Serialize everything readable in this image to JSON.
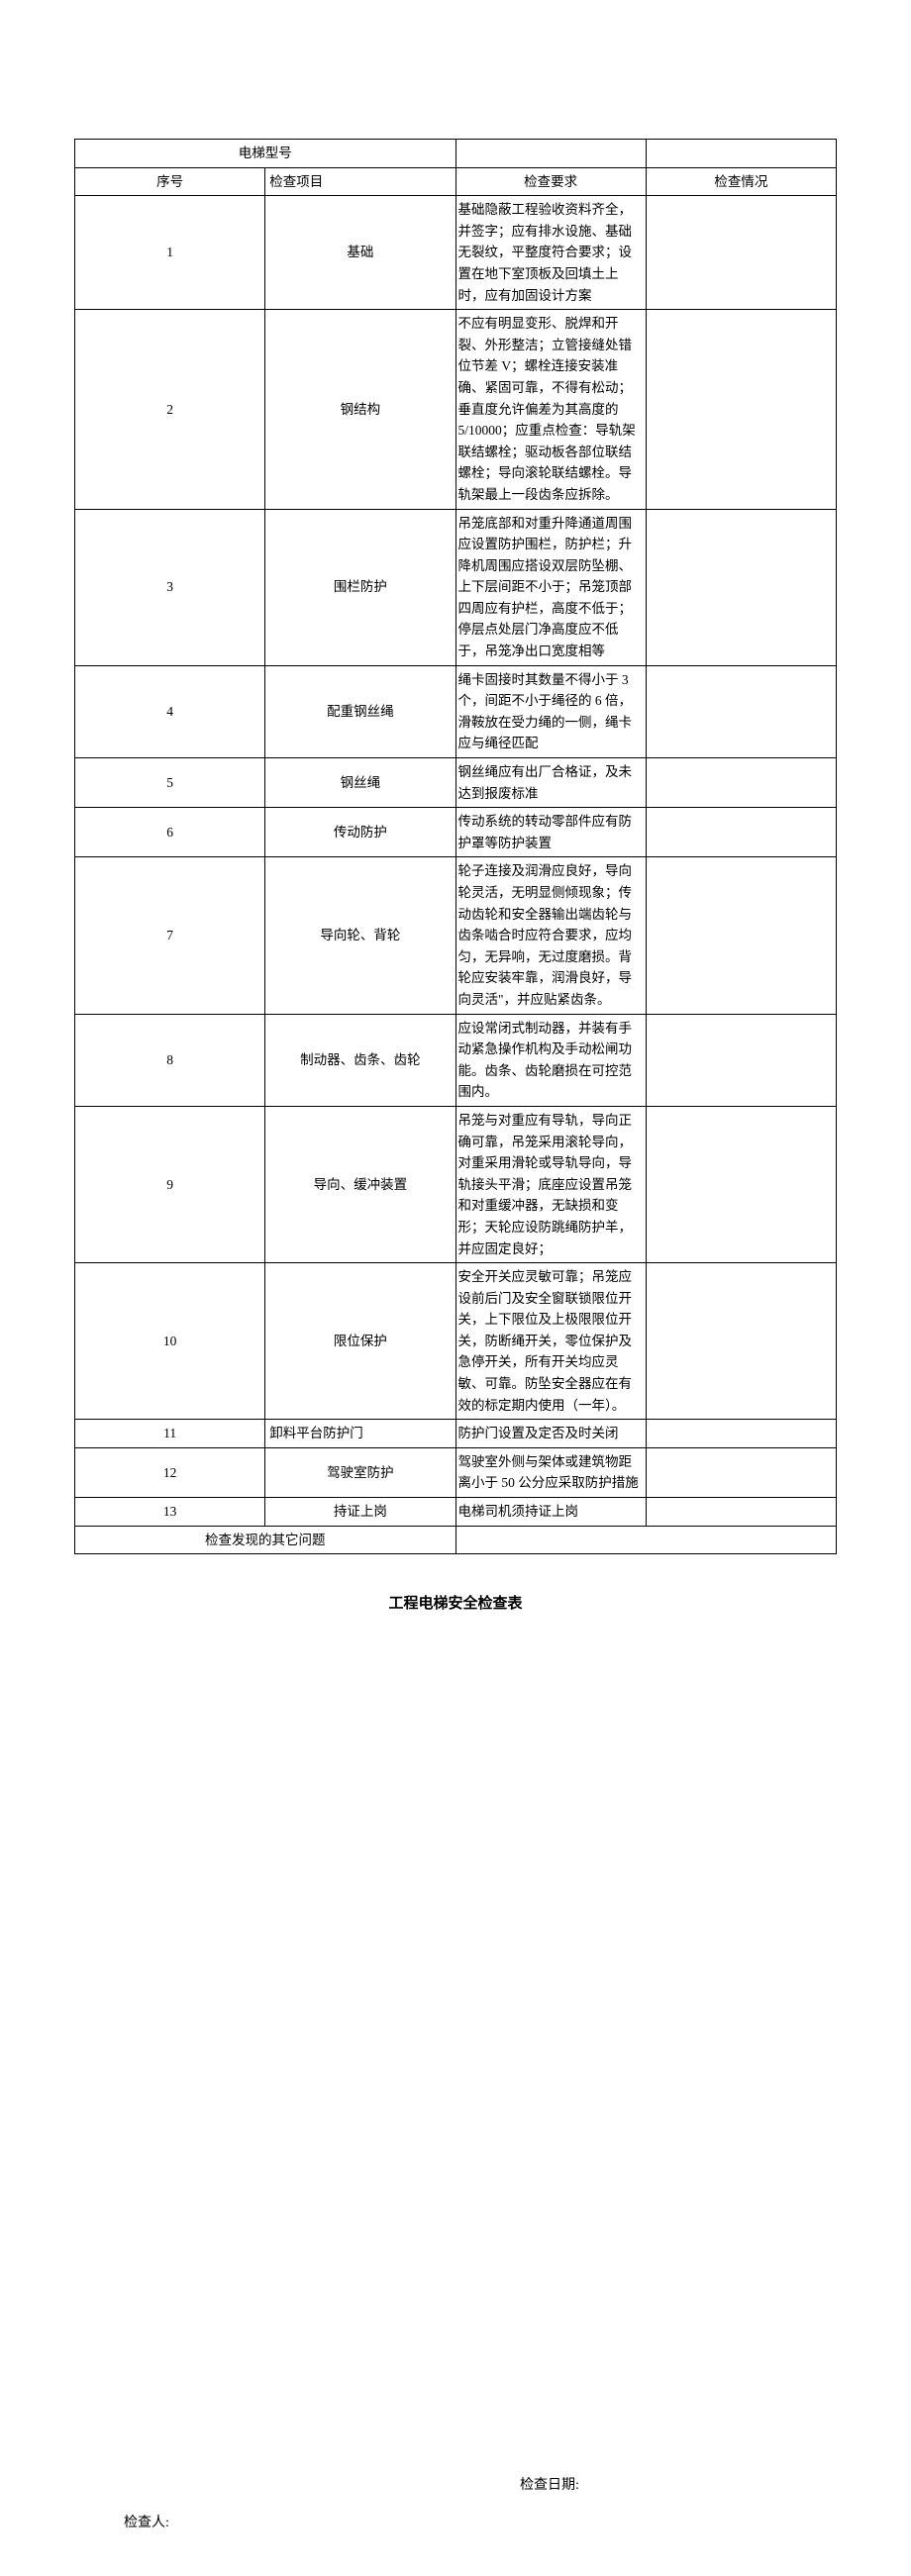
{
  "header": {
    "model_label": "电梯型号",
    "col_num": "序号",
    "col_item": "检查项目",
    "col_req": "检查要求",
    "col_status": "检查情况"
  },
  "rows": [
    {
      "num": "1",
      "item": "基础",
      "req": "基础隐蔽工程验收资料齐全，并签字；应有排水设施、基础无裂纹，平整度符合要求；设置在地下室顶板及回填土上时，应有加固设计方案",
      "status": ""
    },
    {
      "num": "2",
      "item": "钢结构",
      "req": "不应有明显变形、脱焊和开裂、外形整洁；立管接缝处错位节差 V；螺栓连接安装准确、紧固可靠，不得有松动；垂直度允许偏差为其高度的5/10000；应重点检查：导轨架联结螺栓；驱动板各部位联结螺栓；导向滚轮联结螺栓。导轨架最上一段齿条应拆除。",
      "status": ""
    },
    {
      "num": "3",
      "item": "围栏防护",
      "req": "吊笼底部和对重升降通道周围应设置防护围栏，防护栏；升降机周围应搭设双层防坠棚、上下层间距不小于；吊笼顶部四周应有护栏，高度不低于；停层点处层门净高度应不低于，吊笼净出口宽度相等",
      "status": ""
    },
    {
      "num": "4",
      "item": "配重钢丝绳",
      "req": "绳卡固接时其数量不得小于 3 个，间距不小于绳径的 6 倍，滑鞍放在受力绳的一侧，绳卡应与绳径匹配",
      "status": ""
    },
    {
      "num": "5",
      "item": "钢丝绳",
      "req": "钢丝绳应有出厂合格证，及未达到报废标准",
      "status": ""
    },
    {
      "num": "6",
      "item": "传动防护",
      "req": "传动系统的转动零部件应有防护罩等防护装置",
      "status": ""
    },
    {
      "num": "7",
      "item": "导向轮、背轮",
      "req": "轮子连接及润滑应良好，导向轮灵活，无明显侧倾现象；传动齿轮和安全器输出端齿轮与齿条啮合时应符合要求，应均匀，无异响，无过度磨损。背轮应安装牢靠，润滑良好，导向灵活\"，并应贴紧齿条。",
      "status": ""
    },
    {
      "num": "8",
      "item": "制动器、齿条、齿轮",
      "req": "应设常闭式制动器，并装有手动紧急操作机构及手动松闸功能。齿条、齿轮磨损在可控范围内。",
      "status": ""
    },
    {
      "num": "9",
      "item": "导向、缓冲装置",
      "req": "吊笼与对重应有导轨，导向正确可靠，吊笼采用滚轮导向，对重采用滑轮或导轨导向，导轨接头平滑；底座应设置吊笼和对重缓冲器，无缺损和变形；天轮应设防跳绳防护羊，并应固定良好；",
      "status": ""
    },
    {
      "num": "10",
      "item": "限位保护",
      "req": "安全开关应灵敏可靠；吊笼应设前后门及安全窗联锁限位开关，上下限位及上极限限位开关，防断绳开关，零位保护及急停开关，所有开关均应灵敏、可靠。防坠安全器应在有效的标定期内使用（一年）。",
      "status": ""
    },
    {
      "num": "11",
      "item": "卸料平台防护门",
      "req": "防护门设置及定否及时关闭",
      "status": ""
    },
    {
      "num": "12",
      "item": "驾驶室防护",
      "req": "驾驶室外侧与架体或建筑物距离小于 50 公分应采取防护措施",
      "status": ""
    },
    {
      "num": "13",
      "item": "持证上岗",
      "req": "电梯司机须持证上岗",
      "status": ""
    }
  ],
  "footer_row": {
    "label": "检查发现的其它问题",
    "value": ""
  },
  "section_title": "工程电梯安全检查表",
  "signature": {
    "date_label": "检查日期:",
    "inspector_label": "检查人:"
  },
  "style": {
    "font_family": "SimSun",
    "border_color": "#000000",
    "background_color": "#ffffff",
    "text_color": "#000000",
    "base_fontsize": 14,
    "table_fontsize": 13.5,
    "title_fontsize": 15,
    "line_height": 1.6,
    "column_widths": {
      "num": 48,
      "item": 152,
      "status": 80
    }
  }
}
